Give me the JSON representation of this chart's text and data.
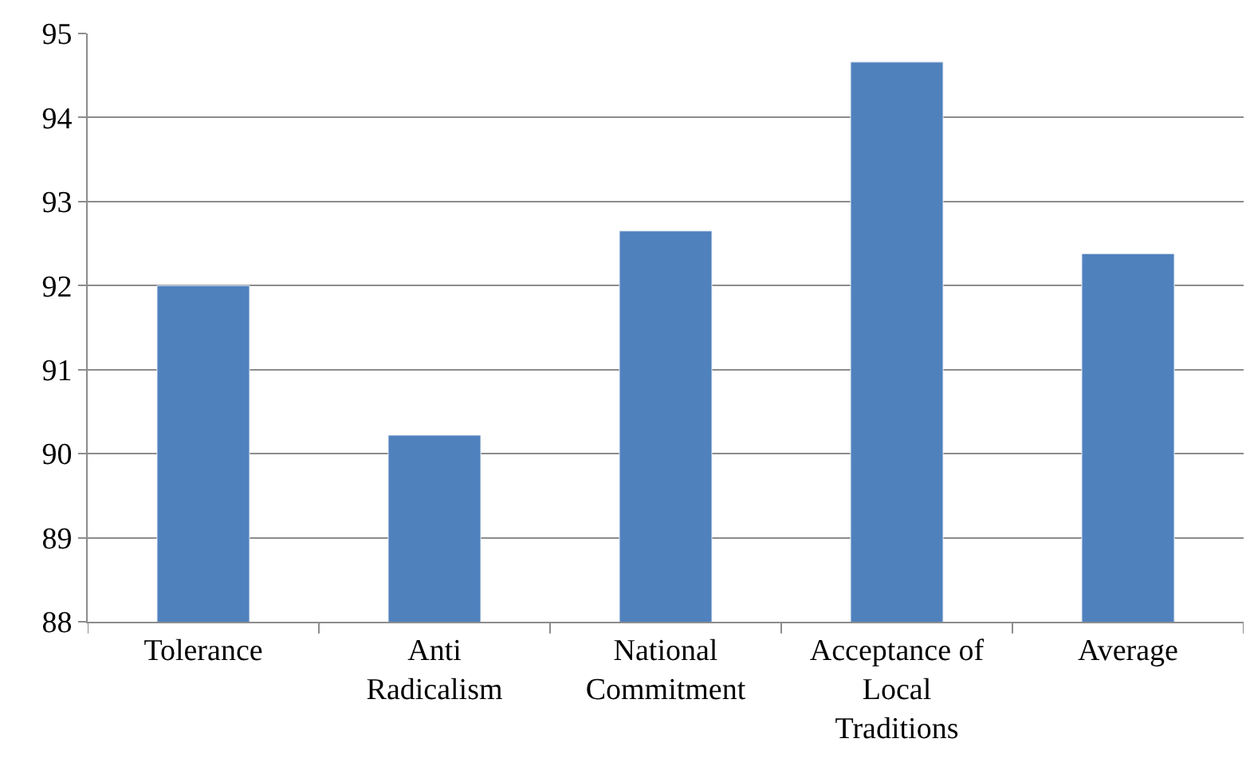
{
  "chart_data": {
    "type": "bar",
    "categories": [
      "Tolerance",
      "Anti Radicalism",
      "National Commitment",
      "Acceptance of Local Traditions",
      "Average"
    ],
    "values": [
      92.0,
      90.22,
      92.65,
      94.66,
      92.38
    ],
    "color": "#4f81bd",
    "ylim": [
      88,
      95
    ],
    "yticks": [
      88,
      89,
      90,
      91,
      92,
      93,
      94,
      95
    ],
    "grid": "y"
  }
}
